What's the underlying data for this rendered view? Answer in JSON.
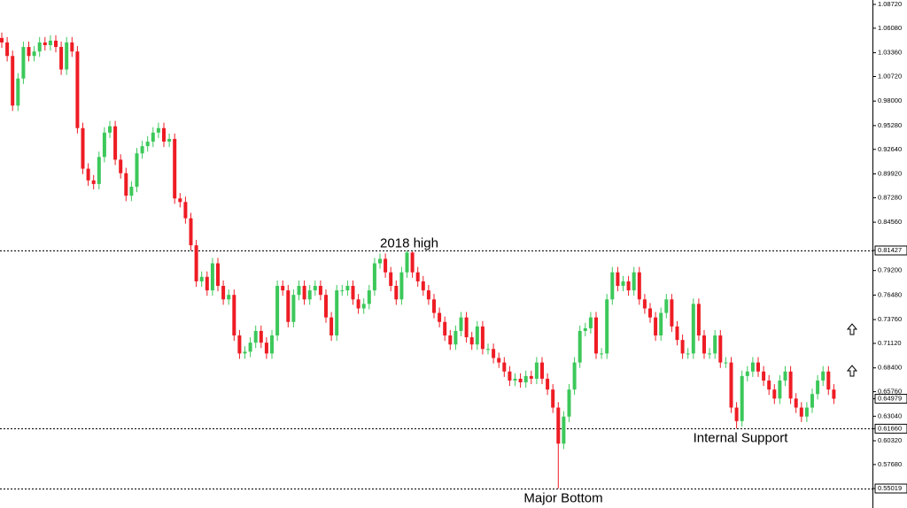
{
  "chart_data": {
    "type": "candlestick",
    "up_color": "#3cc85a",
    "down_color": "#ee1c24",
    "level_color": "#000000",
    "ylim": [
      0.5286,
      1.0921
    ],
    "yticks": [
      {
        "value": 1.0872,
        "label": "1.08720"
      },
      {
        "value": 1.0608,
        "label": "1.06080"
      },
      {
        "value": 1.0336,
        "label": "1.03360"
      },
      {
        "value": 1.0072,
        "label": "1.00720"
      },
      {
        "value": 0.98,
        "label": "0.98000"
      },
      {
        "value": 0.9528,
        "label": "0.95280"
      },
      {
        "value": 0.9264,
        "label": "0.92640"
      },
      {
        "value": 0.8992,
        "label": "0.89920"
      },
      {
        "value": 0.8728,
        "label": "0.87280"
      },
      {
        "value": 0.8456,
        "label": "0.84560"
      },
      {
        "value": 0.81427,
        "label": "0.81427"
      },
      {
        "value": 0.792,
        "label": "0.79200"
      },
      {
        "value": 0.7648,
        "label": "0.76480"
      },
      {
        "value": 0.7376,
        "label": "0.73760"
      },
      {
        "value": 0.7112,
        "label": "0.71120"
      },
      {
        "value": 0.684,
        "label": "0.68400"
      },
      {
        "value": 0.6576,
        "label": "0.65760"
      },
      {
        "value": 0.64979,
        "label": "0.64979"
      },
      {
        "value": 0.6304,
        "label": "0.63040"
      },
      {
        "value": 0.6166,
        "label": "0.61660"
      },
      {
        "value": 0.6032,
        "label": "0.60320"
      },
      {
        "value": 0.5768,
        "label": "0.57680"
      },
      {
        "value": 0.55019,
        "label": "0.55019"
      }
    ],
    "levels": [
      {
        "value": 0.81427,
        "label": "2018 high"
      },
      {
        "value": 0.6166,
        "label": "Internal Support"
      },
      {
        "value": 0.55019,
        "label": "Major Bottom"
      }
    ],
    "open": [
      1.05,
      1.045,
      1.03,
      0.975,
      1.005,
      1.04,
      1.03,
      1.035,
      1.045,
      1.042,
      1.047,
      1.04,
      1.015,
      1.045,
      1.035,
      0.95,
      0.905,
      0.892,
      0.888,
      0.918,
      0.945,
      0.952,
      0.915,
      0.9,
      0.875,
      0.885,
      0.922,
      0.93,
      0.935,
      0.945,
      0.95,
      0.935,
      0.938,
      0.872,
      0.868,
      0.85,
      0.82,
      0.78,
      0.785,
      0.77,
      0.8,
      0.775,
      0.76,
      0.765,
      0.72,
      0.7,
      0.702,
      0.712,
      0.725,
      0.712,
      0.7,
      0.72,
      0.775,
      0.77,
      0.735,
      0.765,
      0.775,
      0.76,
      0.77,
      0.775,
      0.765,
      0.74,
      0.72,
      0.77,
      0.77,
      0.775,
      0.76,
      0.75,
      0.755,
      0.77,
      0.8,
      0.805,
      0.79,
      0.775,
      0.76,
      0.79,
      0.812,
      0.79,
      0.78,
      0.77,
      0.76,
      0.745,
      0.735,
      0.72,
      0.71,
      0.725,
      0.74,
      0.718,
      0.71,
      0.73,
      0.705,
      0.705,
      0.695,
      0.69,
      0.68,
      0.67,
      0.672,
      0.668,
      0.675,
      0.672,
      0.69,
      0.672,
      0.66,
      0.64,
      0.6,
      0.63,
      0.66,
      0.69,
      0.725,
      0.728,
      0.74,
      0.7,
      0.7,
      0.76,
      0.79,
      0.775,
      0.78,
      0.77,
      0.79,
      0.76,
      0.75,
      0.74,
      0.72,
      0.745,
      0.76,
      0.73,
      0.715,
      0.7,
      0.7,
      0.755,
      0.72,
      0.7,
      0.7,
      0.72,
      0.69,
      0.69,
      0.64,
      0.625,
      0.675,
      0.68,
      0.69,
      0.68,
      0.67,
      0.66,
      0.65,
      0.67,
      0.68,
      0.65,
      0.64,
      0.63,
      0.64,
      0.655,
      0.67,
      0.68,
      0.66
    ],
    "high": [
      1.056,
      1.051,
      1.036,
      1.011,
      1.046,
      1.046,
      1.041,
      1.051,
      1.051,
      1.053,
      1.053,
      1.046,
      1.051,
      1.051,
      1.041,
      0.956,
      0.911,
      0.898,
      0.924,
      0.951,
      0.958,
      0.958,
      0.921,
      0.906,
      0.891,
      0.928,
      0.936,
      0.941,
      0.951,
      0.956,
      0.956,
      0.944,
      0.944,
      0.878,
      0.874,
      0.856,
      0.826,
      0.791,
      0.791,
      0.806,
      0.806,
      0.781,
      0.771,
      0.771,
      0.726,
      0.708,
      0.718,
      0.731,
      0.731,
      0.718,
      0.726,
      0.781,
      0.781,
      0.776,
      0.771,
      0.781,
      0.781,
      0.776,
      0.781,
      0.781,
      0.771,
      0.746,
      0.776,
      0.776,
      0.781,
      0.781,
      0.766,
      0.761,
      0.776,
      0.806,
      0.811,
      0.811,
      0.796,
      0.781,
      0.796,
      0.81427,
      0.813,
      0.796,
      0.786,
      0.776,
      0.766,
      0.751,
      0.741,
      0.726,
      0.731,
      0.746,
      0.746,
      0.724,
      0.736,
      0.736,
      0.711,
      0.711,
      0.701,
      0.696,
      0.686,
      0.678,
      0.678,
      0.681,
      0.681,
      0.696,
      0.696,
      0.678,
      0.666,
      0.646,
      0.636,
      0.666,
      0.696,
      0.731,
      0.734,
      0.746,
      0.746,
      0.706,
      0.766,
      0.796,
      0.796,
      0.786,
      0.786,
      0.796,
      0.796,
      0.766,
      0.756,
      0.746,
      0.751,
      0.766,
      0.766,
      0.736,
      0.721,
      0.706,
      0.761,
      0.761,
      0.726,
      0.706,
      0.726,
      0.726,
      0.696,
      0.696,
      0.646,
      0.681,
      0.686,
      0.696,
      0.696,
      0.686,
      0.676,
      0.666,
      0.676,
      0.686,
      0.686,
      0.656,
      0.646,
      0.646,
      0.661,
      0.676,
      0.686,
      0.686,
      0.666
    ],
    "low": [
      1.039,
      1.024,
      0.969,
      0.969,
      0.999,
      1.024,
      1.024,
      1.029,
      1.036,
      1.036,
      1.034,
      1.009,
      1.009,
      1.029,
      0.944,
      0.899,
      0.886,
      0.882,
      0.882,
      0.912,
      0.939,
      0.909,
      0.894,
      0.869,
      0.869,
      0.879,
      0.916,
      0.924,
      0.929,
      0.939,
      0.929,
      0.929,
      0.866,
      0.862,
      0.844,
      0.814,
      0.774,
      0.774,
      0.764,
      0.764,
      0.769,
      0.754,
      0.754,
      0.714,
      0.694,
      0.694,
      0.696,
      0.706,
      0.706,
      0.694,
      0.694,
      0.714,
      0.764,
      0.729,
      0.729,
      0.759,
      0.754,
      0.754,
      0.764,
      0.759,
      0.734,
      0.714,
      0.714,
      0.764,
      0.764,
      0.754,
      0.744,
      0.744,
      0.749,
      0.764,
      0.794,
      0.784,
      0.769,
      0.754,
      0.754,
      0.784,
      0.784,
      0.774,
      0.764,
      0.754,
      0.739,
      0.729,
      0.714,
      0.704,
      0.704,
      0.719,
      0.712,
      0.704,
      0.704,
      0.699,
      0.699,
      0.689,
      0.684,
      0.674,
      0.664,
      0.664,
      0.662,
      0.662,
      0.666,
      0.666,
      0.666,
      0.654,
      0.634,
      0.55019,
      0.594,
      0.624,
      0.654,
      0.684,
      0.719,
      0.722,
      0.694,
      0.694,
      0.694,
      0.754,
      0.769,
      0.769,
      0.764,
      0.764,
      0.754,
      0.744,
      0.734,
      0.714,
      0.714,
      0.739,
      0.724,
      0.709,
      0.694,
      0.694,
      0.694,
      0.714,
      0.694,
      0.694,
      0.694,
      0.684,
      0.684,
      0.634,
      0.6166,
      0.619,
      0.669,
      0.674,
      0.674,
      0.664,
      0.654,
      0.644,
      0.644,
      0.664,
      0.644,
      0.634,
      0.624,
      0.624,
      0.634,
      0.649,
      0.664,
      0.654,
      0.644
    ],
    "close": [
      1.045,
      1.03,
      0.975,
      1.005,
      1.04,
      1.03,
      1.035,
      1.045,
      1.042,
      1.047,
      1.04,
      1.015,
      1.045,
      1.035,
      0.95,
      0.905,
      0.892,
      0.888,
      0.918,
      0.945,
      0.952,
      0.915,
      0.9,
      0.875,
      0.885,
      0.922,
      0.93,
      0.935,
      0.945,
      0.95,
      0.935,
      0.938,
      0.872,
      0.868,
      0.85,
      0.82,
      0.78,
      0.785,
      0.77,
      0.8,
      0.775,
      0.76,
      0.765,
      0.72,
      0.7,
      0.702,
      0.712,
      0.725,
      0.712,
      0.7,
      0.72,
      0.775,
      0.77,
      0.735,
      0.765,
      0.775,
      0.76,
      0.77,
      0.775,
      0.765,
      0.74,
      0.72,
      0.77,
      0.77,
      0.775,
      0.76,
      0.75,
      0.755,
      0.77,
      0.8,
      0.805,
      0.79,
      0.775,
      0.76,
      0.79,
      0.812,
      0.79,
      0.78,
      0.77,
      0.76,
      0.745,
      0.735,
      0.72,
      0.71,
      0.725,
      0.74,
      0.718,
      0.71,
      0.73,
      0.705,
      0.705,
      0.695,
      0.69,
      0.68,
      0.67,
      0.672,
      0.668,
      0.675,
      0.672,
      0.69,
      0.672,
      0.66,
      0.64,
      0.6,
      0.63,
      0.66,
      0.69,
      0.725,
      0.728,
      0.74,
      0.7,
      0.7,
      0.76,
      0.79,
      0.775,
      0.78,
      0.77,
      0.79,
      0.76,
      0.75,
      0.74,
      0.72,
      0.745,
      0.76,
      0.73,
      0.715,
      0.7,
      0.7,
      0.755,
      0.72,
      0.7,
      0.7,
      0.72,
      0.69,
      0.69,
      0.64,
      0.625,
      0.675,
      0.68,
      0.69,
      0.68,
      0.67,
      0.66,
      0.65,
      0.67,
      0.68,
      0.65,
      0.64,
      0.63,
      0.64,
      0.655,
      0.67,
      0.68,
      0.66,
      0.64979
    ]
  }
}
